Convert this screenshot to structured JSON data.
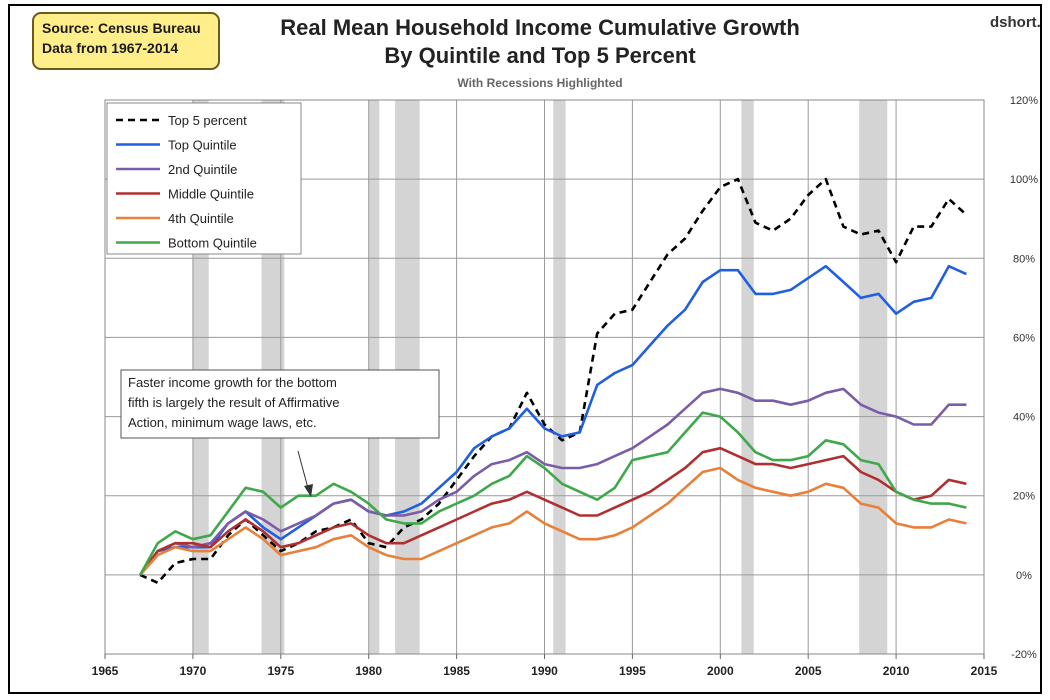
{
  "header": {
    "source_line1": "Source: Census Bureau",
    "source_line2": "Data from 1967-2014",
    "brand": "dshort.c",
    "title_line1": "Real Mean Household Income Cumulative Growth",
    "title_line2": "By Quintile and Top 5 Percent",
    "subtitle": "With Recessions Highlighted"
  },
  "annotation": {
    "line1": "Faster income growth for the bottom",
    "line2": "fifth is largely the result of Affirmative",
    "line3": "Action, minimum wage laws, etc."
  },
  "chart_data": {
    "type": "line",
    "x_ticks": [
      1965,
      1970,
      1975,
      1980,
      1985,
      1990,
      1995,
      2000,
      2005,
      2010,
      2015
    ],
    "x_tick_labels": [
      "1965",
      "1970",
      "1975",
      "1980",
      "1985",
      "1990",
      "1995",
      "2000",
      "2005",
      "2010",
      "2015"
    ],
    "xlim": [
      1965,
      2015
    ],
    "y_ticks": [
      -20,
      0,
      20,
      40,
      60,
      80,
      100,
      120
    ],
    "y_tick_labels": [
      "-20%",
      "0%",
      "20%",
      "40%",
      "60%",
      "80%",
      "100%",
      "120%"
    ],
    "ylim": [
      -20,
      120
    ],
    "y_axis_side": "right",
    "grid": "vertical and horizontal at major ticks",
    "legend_placement": "top-left",
    "recessions": [
      [
        1970.0,
        1970.9
      ],
      [
        1973.9,
        1975.2
      ],
      [
        1980.0,
        1980.6
      ],
      [
        1981.5,
        1982.9
      ],
      [
        1990.5,
        1991.2
      ],
      [
        2001.2,
        2001.9
      ],
      [
        2007.9,
        2009.5
      ]
    ],
    "x": [
      1967,
      1968,
      1969,
      1970,
      1971,
      1972,
      1973,
      1974,
      1975,
      1976,
      1977,
      1978,
      1979,
      1980,
      1981,
      1982,
      1983,
      1984,
      1985,
      1986,
      1987,
      1988,
      1989,
      1990,
      1991,
      1992,
      1993,
      1994,
      1995,
      1996,
      1997,
      1998,
      1999,
      2000,
      2001,
      2002,
      2003,
      2004,
      2005,
      2006,
      2007,
      2008,
      2009,
      2010,
      2011,
      2012,
      2013,
      2014
    ],
    "series": [
      {
        "name": "Top 5 percent",
        "color": "#000000",
        "dashed": true,
        "values": [
          0,
          -2,
          3,
          4,
          4,
          10,
          14,
          10,
          6,
          8,
          11,
          12,
          14,
          8,
          7,
          12,
          14,
          18,
          24,
          30,
          35,
          37,
          46,
          38,
          34,
          36,
          61,
          66,
          67,
          74,
          81,
          85,
          92,
          98,
          100,
          89,
          87,
          90,
          96,
          100,
          88,
          86,
          87,
          79,
          88,
          88,
          95,
          91
        ]
      },
      {
        "name": "Top Quintile",
        "color": "#1f5fe0",
        "dashed": false,
        "values": [
          0,
          6,
          7,
          7,
          7,
          13,
          16,
          12,
          9,
          12,
          15,
          18,
          19,
          16,
          15,
          16,
          18,
          22,
          26,
          32,
          35,
          37,
          42,
          37,
          35,
          36,
          48,
          51,
          53,
          58,
          63,
          67,
          74,
          77,
          77,
          71,
          71,
          72,
          75,
          78,
          74,
          70,
          71,
          66,
          69,
          70,
          78,
          76
        ]
      },
      {
        "name": "2nd Quintile",
        "color": "#7b5ca8",
        "dashed": false,
        "values": [
          0,
          6,
          8,
          7,
          8,
          13,
          16,
          14,
          11,
          13,
          15,
          18,
          19,
          16,
          15,
          15,
          16,
          19,
          21,
          25,
          28,
          29,
          31,
          28,
          27,
          27,
          28,
          30,
          32,
          35,
          38,
          42,
          46,
          47,
          46,
          44,
          44,
          43,
          44,
          46,
          47,
          43,
          41,
          40,
          38,
          38,
          43,
          43
        ]
      },
      {
        "name": "Middle Quintile",
        "color": "#b03030",
        "dashed": false,
        "values": [
          0,
          6,
          8,
          8,
          7,
          11,
          14,
          11,
          7,
          8,
          10,
          12,
          13,
          10,
          8,
          8,
          10,
          12,
          14,
          16,
          18,
          19,
          21,
          19,
          17,
          15,
          15,
          17,
          19,
          21,
          24,
          27,
          31,
          32,
          30,
          28,
          28,
          27,
          28,
          29,
          30,
          26,
          24,
          21,
          19,
          20,
          24,
          23
        ]
      },
      {
        "name": "4th Quintile",
        "color": "#e8803a",
        "dashed": false,
        "values": [
          0,
          5,
          7,
          6,
          6,
          9,
          12,
          9,
          5,
          6,
          7,
          9,
          10,
          7,
          5,
          4,
          4,
          6,
          8,
          10,
          12,
          13,
          16,
          13,
          11,
          9,
          9,
          10,
          12,
          15,
          18,
          22,
          26,
          27,
          24,
          22,
          21,
          20,
          21,
          23,
          22,
          18,
          17,
          13,
          12,
          12,
          14,
          13
        ]
      },
      {
        "name": "Bottom Quintile",
        "color": "#3ea84a",
        "dashed": false,
        "values": [
          0,
          8,
          11,
          9,
          10,
          16,
          22,
          21,
          17,
          20,
          20,
          23,
          21,
          18,
          14,
          13,
          13,
          16,
          18,
          20,
          23,
          25,
          30,
          27,
          23,
          21,
          19,
          22,
          29,
          30,
          31,
          36,
          41,
          40,
          36,
          31,
          29,
          29,
          30,
          34,
          33,
          29,
          28,
          21,
          19,
          18,
          18,
          17
        ]
      }
    ]
  }
}
